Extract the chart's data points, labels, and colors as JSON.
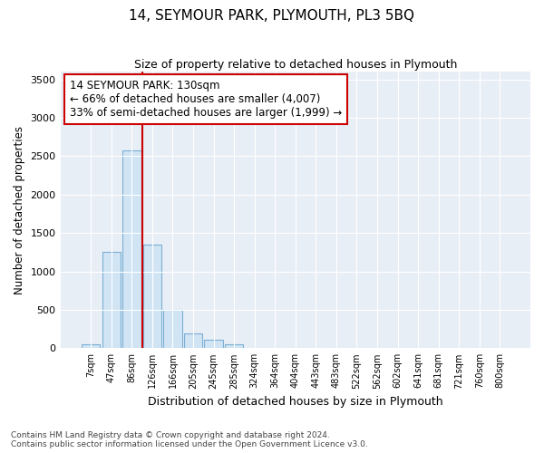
{
  "title": "14, SEYMOUR PARK, PLYMOUTH, PL3 5BQ",
  "subtitle": "Size of property relative to detached houses in Plymouth",
  "xlabel": "Distribution of detached houses by size in Plymouth",
  "ylabel": "Number of detached properties",
  "bar_color": "#d0e4f4",
  "bar_edge_color": "#7aafd4",
  "categories": [
    "7sqm",
    "47sqm",
    "86sqm",
    "126sqm",
    "166sqm",
    "205sqm",
    "245sqm",
    "285sqm",
    "324sqm",
    "364sqm",
    "404sqm",
    "443sqm",
    "483sqm",
    "522sqm",
    "562sqm",
    "602sqm",
    "641sqm",
    "681sqm",
    "721sqm",
    "760sqm",
    "800sqm"
  ],
  "values": [
    50,
    1250,
    2580,
    1350,
    500,
    195,
    110,
    50,
    0,
    0,
    0,
    0,
    0,
    0,
    0,
    0,
    0,
    0,
    0,
    0,
    0
  ],
  "property_line_x": 2.5,
  "annotation_text": "14 SEYMOUR PARK: 130sqm\n← 66% of detached houses are smaller (4,007)\n33% of semi-detached houses are larger (1,999) →",
  "annotation_box_color": "#ffffff",
  "annotation_box_edge_color": "#cc0000",
  "ylim": [
    0,
    3600
  ],
  "yticks": [
    0,
    500,
    1000,
    1500,
    2000,
    2500,
    3000,
    3500
  ],
  "footer_line1": "Contains HM Land Registry data © Crown copyright and database right 2024.",
  "footer_line2": "Contains public sector information licensed under the Open Government Licence v3.0.",
  "bg_color": "#ffffff",
  "plot_bg_color": "#e8eef6"
}
